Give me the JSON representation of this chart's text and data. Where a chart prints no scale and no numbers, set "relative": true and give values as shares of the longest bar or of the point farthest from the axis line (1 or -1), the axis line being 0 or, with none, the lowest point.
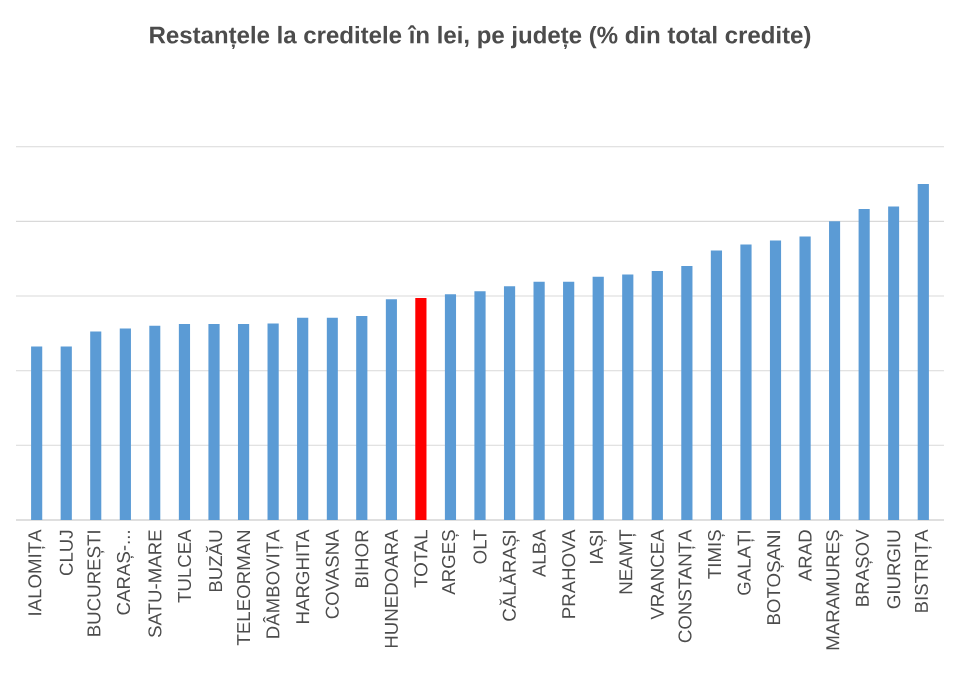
{
  "chart_data": {
    "type": "bar",
    "title": "Restanțele la creditele în lei, pe județe (% din total credite)",
    "relative": true,
    "grid": "y",
    "categories": [
      "IALOMIȚA",
      "CLUJ",
      "BUCUREȘTI",
      "CARAȘ-...",
      "SATU-MARE",
      "TULCEA",
      "BUZĂU",
      "TELEORMAN",
      "DÂMBOVIȚA",
      "HARGHITA",
      "COVASNA",
      "BIHOR",
      "HUNEDOARA",
      "TOTAL",
      "ARGEȘ",
      "OLT",
      "CĂLĂRAȘI",
      "ALBA",
      "PRAHOVA",
      "IAȘI",
      "NEAMȚ",
      "VRANCEA",
      "CONSTANȚA",
      "TIMIȘ",
      "GALAȚI",
      "BOTOȘANI",
      "ARAD",
      "MARAMUREȘ",
      "BRAȘOV",
      "GIURGIU",
      "BISTRIȚA"
    ],
    "values": [
      0.516,
      0.516,
      0.561,
      0.57,
      0.578,
      0.583,
      0.583,
      0.583,
      0.585,
      0.602,
      0.602,
      0.607,
      0.657,
      0.661,
      0.672,
      0.681,
      0.696,
      0.709,
      0.709,
      0.724,
      0.731,
      0.741,
      0.756,
      0.802,
      0.82,
      0.832,
      0.844,
      0.889,
      0.926,
      0.933,
      1
    ],
    "colors": [
      "#5b9bd5",
      "#5b9bd5",
      "#5b9bd5",
      "#5b9bd5",
      "#5b9bd5",
      "#5b9bd5",
      "#5b9bd5",
      "#5b9bd5",
      "#5b9bd5",
      "#5b9bd5",
      "#5b9bd5",
      "#5b9bd5",
      "#5b9bd5",
      "#ff0000",
      "#5b9bd5",
      "#5b9bd5",
      "#5b9bd5",
      "#5b9bd5",
      "#5b9bd5",
      "#5b9bd5",
      "#5b9bd5",
      "#5b9bd5",
      "#5b9bd5",
      "#5b9bd5",
      "#5b9bd5",
      "#5b9bd5",
      "#5b9bd5",
      "#5b9bd5",
      "#5b9bd5",
      "#5b9bd5",
      "#5b9bd5"
    ]
  }
}
